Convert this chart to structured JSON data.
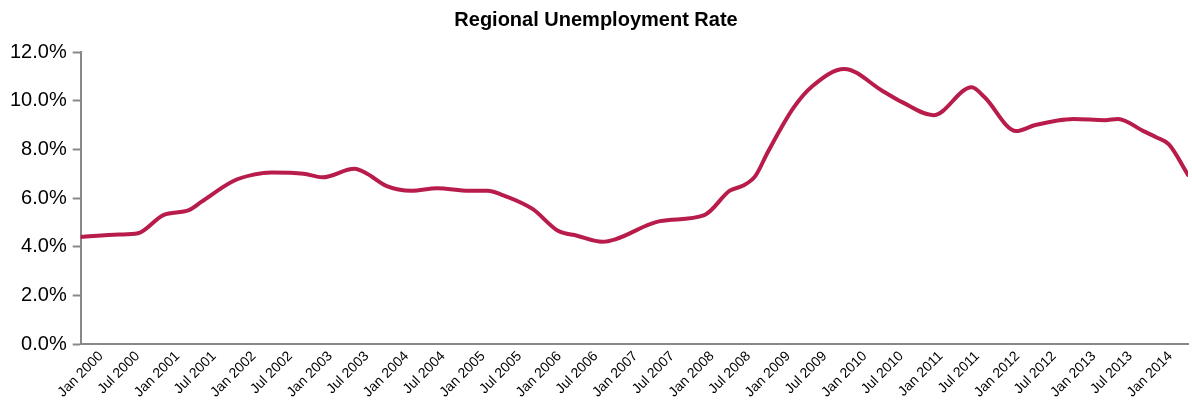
{
  "chart_data": {
    "type": "line",
    "title": "Regional Unemployment Rate",
    "x": [
      "2000-01",
      "2000-07",
      "2000-10",
      "2001-02",
      "2001-06",
      "2001-08",
      "2002-01",
      "2002-04",
      "2002-07",
      "2002-12",
      "2003-03",
      "2003-08",
      "2003-10",
      "2004-01",
      "2004-05",
      "2004-09",
      "2005-02",
      "2005-05",
      "2005-07",
      "2005-12",
      "2006-04",
      "2006-07",
      "2006-11",
      "2007-01",
      "2007-08",
      "2008-03",
      "2008-07",
      "2008-09",
      "2008-11",
      "2009-01",
      "2009-05",
      "2009-08",
      "2010-01",
      "2010-07",
      "2010-10",
      "2011-03",
      "2011-09",
      "2011-11",
      "2012-04",
      "2012-07",
      "2013-01",
      "2013-06",
      "2013-08",
      "2013-12",
      "2014-02",
      "2014-04",
      "2014-07"
    ],
    "series": [
      {
        "color": "#b81c4b",
        "values": [
          4.4,
          4.5,
          4.55,
          5.3,
          5.5,
          5.85,
          6.7,
          6.95,
          7.05,
          7.0,
          6.85,
          7.2,
          7.0,
          6.5,
          6.3,
          6.4,
          6.3,
          6.3,
          6.15,
          5.55,
          4.65,
          4.45,
          4.2,
          4.3,
          5.05,
          5.3,
          6.3,
          6.5,
          6.9,
          7.9,
          9.7,
          10.6,
          11.3,
          10.4,
          9.95,
          9.4,
          10.55,
          10.15,
          8.75,
          9.0,
          9.25,
          9.2,
          9.25,
          8.75,
          8.5,
          8.2,
          6.95
        ]
      }
    ],
    "xlim": [
      "2000-01",
      "2014-07"
    ],
    "xticks": [
      {
        "value": "2000-01",
        "label": "Jan 2000"
      },
      {
        "value": "2000-07",
        "label": "Jul 2000"
      },
      {
        "value": "2001-01",
        "label": "Jan 2001"
      },
      {
        "value": "2001-07",
        "label": "Jul 2001"
      },
      {
        "value": "2002-01",
        "label": "Jan 2002"
      },
      {
        "value": "2002-07",
        "label": "Jul 2002"
      },
      {
        "value": "2003-01",
        "label": "Jan 2003"
      },
      {
        "value": "2003-07",
        "label": "Jul 2003"
      },
      {
        "value": "2004-01",
        "label": "Jan 2004"
      },
      {
        "value": "2004-07",
        "label": "Jul 2004"
      },
      {
        "value": "2005-01",
        "label": "Jan 2005"
      },
      {
        "value": "2005-07",
        "label": "Jul 2005"
      },
      {
        "value": "2006-01",
        "label": "Jan 2006"
      },
      {
        "value": "2006-07",
        "label": "Jul 2006"
      },
      {
        "value": "2007-01",
        "label": "Jan 2007"
      },
      {
        "value": "2007-07",
        "label": "Jul 2007"
      },
      {
        "value": "2008-01",
        "label": "Jan 2008"
      },
      {
        "value": "2008-07",
        "label": "Jul 2008"
      },
      {
        "value": "2009-01",
        "label": "Jan 2009"
      },
      {
        "value": "2009-07",
        "label": "Jul 2009"
      },
      {
        "value": "2010-01",
        "label": "Jan 2010"
      },
      {
        "value": "2010-07",
        "label": "Jul 2010"
      },
      {
        "value": "2011-01",
        "label": "Jan 2011"
      },
      {
        "value": "2011-07",
        "label": "Jul 2011"
      },
      {
        "value": "2012-01",
        "label": "Jan 2012"
      },
      {
        "value": "2012-07",
        "label": "Jul 2012"
      },
      {
        "value": "2013-01",
        "label": "Jan 2013"
      },
      {
        "value": "2013-07",
        "label": "Jul 2013"
      },
      {
        "value": "2014-01",
        "label": "Jan 2014"
      }
    ],
    "ylim": [
      0,
      12
    ],
    "yticks": [
      {
        "value": 0,
        "label": "0.0%"
      },
      {
        "value": 2,
        "label": "2.0%"
      },
      {
        "value": 4,
        "label": "4.0%"
      },
      {
        "value": 6,
        "label": "6.0%"
      },
      {
        "value": 8,
        "label": "8.0%"
      },
      {
        "value": 10,
        "label": "10.0%"
      },
      {
        "value": 12,
        "label": "12.0%"
      }
    ],
    "grid": false,
    "legend": false,
    "marker": "none",
    "line_style": "solid"
  }
}
